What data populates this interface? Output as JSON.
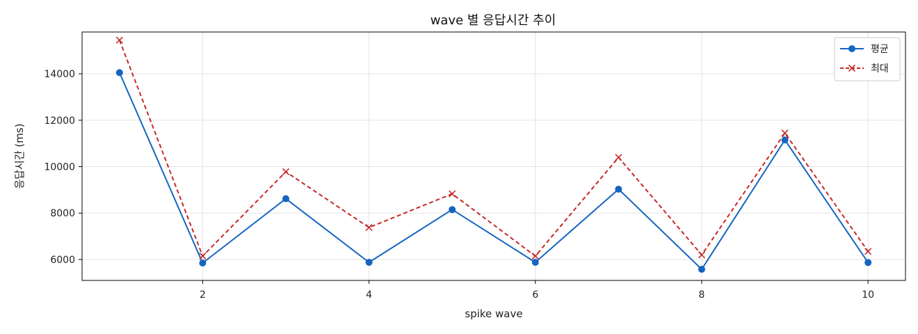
{
  "chart_data": {
    "type": "line",
    "title": "wave 별 응답시간 추이",
    "xlabel": "spike wave",
    "ylabel": "응답시간 (ms)",
    "x": [
      1,
      2,
      3,
      4,
      5,
      6,
      7,
      8,
      9,
      10
    ],
    "xlim": [
      0.55,
      10.45
    ],
    "ylim": [
      5100,
      15800
    ],
    "xticks": [
      2,
      4,
      6,
      8,
      10
    ],
    "yticks": [
      6000,
      8000,
      10000,
      12000,
      14000
    ],
    "grid": true,
    "legend_position": "top-right",
    "series": [
      {
        "name": "평균",
        "color": "#1565c0",
        "line_style": "solid",
        "marker": "circle",
        "values": [
          14050,
          5850,
          8620,
          5880,
          8150,
          5880,
          9030,
          5580,
          11150,
          5870
        ]
      },
      {
        "name": "최대",
        "color": "#c62828",
        "line_style": "dashed",
        "marker": "x",
        "values": [
          15450,
          6150,
          9780,
          7380,
          8830,
          6150,
          10400,
          6200,
          11450,
          6350
        ]
      }
    ]
  }
}
